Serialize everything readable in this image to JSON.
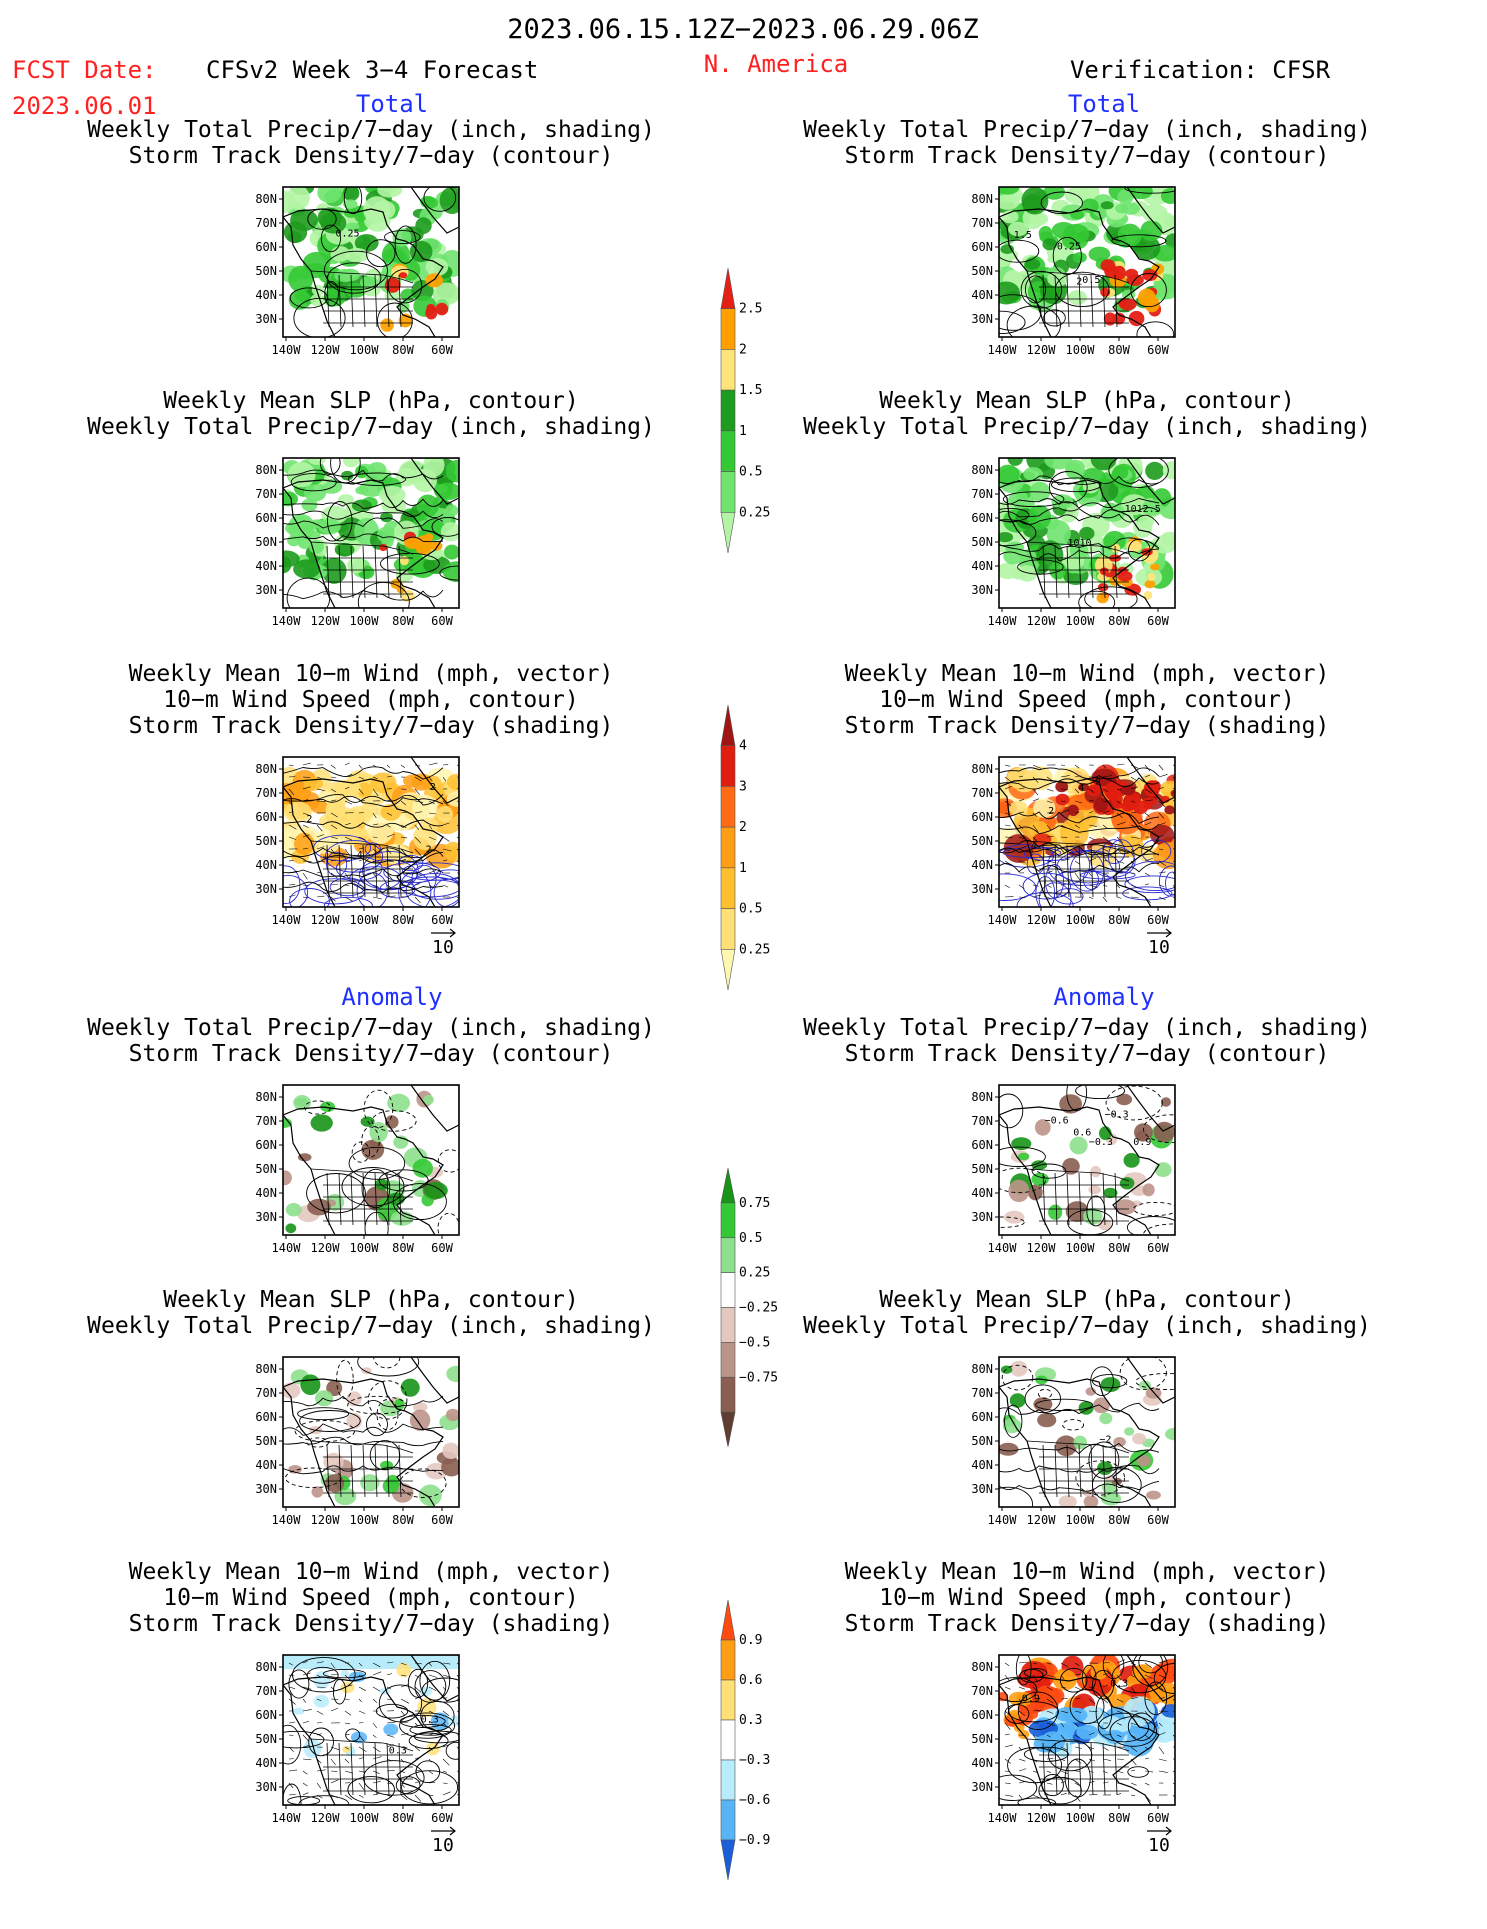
{
  "header": {
    "date_range": "2023.06.15.12Z−2023.06.29.06Z",
    "fcst_date_label": "FCST Date:",
    "fcst_date_value": "2023.06.01",
    "forecast_title": "CFSv2 Week 3−4 Forecast",
    "region": "N. America",
    "verification": "Verification: CFSR",
    "accent_red": "#ff2020",
    "accent_blue": "#2030ff"
  },
  "sections": {
    "total_label": "Total",
    "anomaly_label": "Anomaly"
  },
  "panel_titles": {
    "precip_storm": [
      "Weekly Total Precip/7−day (inch, shading)",
      "Storm Track Density/7−day (contour)"
    ],
    "slp_precip": [
      "Weekly Mean SLP (hPa, contour)",
      "Weekly Total Precip/7−day (inch, shading)"
    ],
    "wind_storm": [
      "Weekly Mean 10−m Wind (mph, vector)",
      "10−m Wind Speed (mph, contour)",
      "Storm Track Density/7−day (shading)"
    ]
  },
  "map_axes": {
    "lat_labels": [
      "80N",
      "70N",
      "60N",
      "50N",
      "40N",
      "30N"
    ],
    "lon_labels": [
      "140W",
      "120W",
      "100W",
      "80W",
      "60W"
    ]
  },
  "vector_reference": "10",
  "map_annotations": {
    "fc_total_precip": [
      "0.25"
    ],
    "vf_total_precip": [
      "0.25",
      "0.5",
      "1.5",
      "2"
    ],
    "vf_total_slp": [
      "1010",
      "1012.5"
    ],
    "fc_total_wind": [
      "4",
      "2",
      "2",
      "2"
    ],
    "vf_total_wind": [
      "4",
      "4",
      "2",
      "2"
    ],
    "vf_anom_precip": [
      "−0.3",
      "0.6",
      "0.9",
      "−0.3",
      "−0.6"
    ],
    "vf_anom_slp": [
      "−2"
    ],
    "fc_anom_wind": [
      "0.3",
      "0.3"
    ],
    "vf_anom_wind": [
      "0.3",
      "0.9"
    ]
  },
  "colorbars": {
    "precip_total": {
      "labels": [
        "2.5",
        "2",
        "1.5",
        "1",
        "0.5",
        "0.25"
      ],
      "colors": [
        "#e41f14",
        "#ffa000",
        "#ffe47a",
        "#1d9b1d",
        "#34c934",
        "#6fe46f",
        "#b4f5a5"
      ]
    },
    "storm_total": {
      "labels": [
        "4",
        "3",
        "2",
        "1",
        "0.5",
        "0.25"
      ],
      "colors": [
        "#a01414",
        "#e01e10",
        "#ff6a14",
        "#ff9e14",
        "#ffc030",
        "#ffe077",
        "#fff6b0"
      ]
    },
    "precip_anom": {
      "labels": [
        "0.75",
        "0.5",
        "0.25",
        "−0.25",
        "−0.5",
        "−0.75"
      ],
      "colors": [
        "#179317",
        "#34c934",
        "#8ee08e",
        "#ffffff",
        "#e3c8c0",
        "#bb9489",
        "#8a5e51",
        "#5f3d30"
      ]
    },
    "storm_anom": {
      "labels": [
        "0.9",
        "0.6",
        "0.3",
        "−0.3",
        "−0.6",
        "−0.9"
      ],
      "colors": [
        "#ff4a10",
        "#ff9e14",
        "#ffe077",
        "#ffffff",
        "#b8ecfb",
        "#56b4f7",
        "#1a5fd8"
      ]
    }
  }
}
